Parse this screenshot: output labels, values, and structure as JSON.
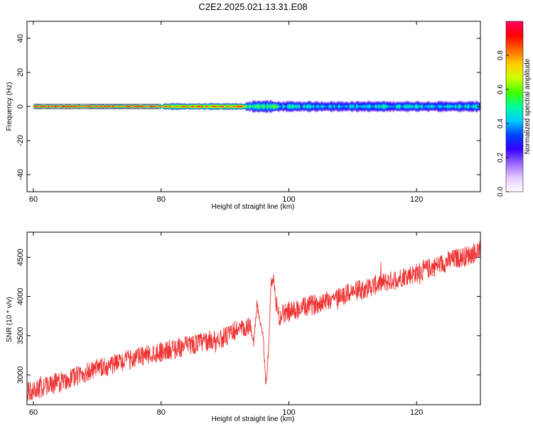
{
  "figure": {
    "title": "C2E2.2025.021.13.31.E08"
  },
  "chart_data": [
    {
      "type": "heatmap",
      "title": "C2E2.2025.021.13.31.E08",
      "xlabel": "Height of straight line (km)",
      "ylabel": "Frequency (Hz)",
      "xlim": [
        59,
        130
      ],
      "ylim": [
        -50,
        50
      ],
      "x_ticks": [
        60,
        80,
        100,
        120
      ],
      "y_ticks": [
        -40,
        -20,
        0,
        20,
        40
      ],
      "colorbar": {
        "label": "Normalized spectral amplitude",
        "range": [
          0,
          1
        ],
        "ticks": [
          "0.0",
          "0.2",
          "0.4",
          "0.6",
          "0.8"
        ],
        "colors": [
          "#ffffff",
          "#e6c8ff",
          "#9966ff",
          "#3300ff",
          "#0044ff",
          "#00ccff",
          "#00ff99",
          "#44ff00",
          "#ccff00",
          "#ffcc00",
          "#ff6600",
          "#ff0000",
          "#ff0066"
        ]
      },
      "ridge": {
        "center_frequency_hz": 0,
        "segments": [
          {
            "x_start": 60,
            "x_end": 80,
            "amplitude": 0.95,
            "half_width_hz": 1.2
          },
          {
            "x_start": 80,
            "x_end": 93,
            "amplitude": 0.85,
            "half_width_hz": 2.0
          },
          {
            "x_start": 93,
            "x_end": 98,
            "amplitude": 0.6,
            "half_width_hz": 3.0
          },
          {
            "x_start": 98,
            "x_end": 130,
            "amplitude": 0.45,
            "half_width_hz": 3.5
          }
        ]
      },
      "grid": false,
      "legend": "right"
    },
    {
      "type": "line",
      "xlabel": "Height of straight line (km)",
      "ylabel": "SNR (10 * v/v)",
      "xlim": [
        59,
        130
      ],
      "ylim": [
        2620,
        4820
      ],
      "x_ticks": [
        60,
        80,
        100,
        120
      ],
      "y_ticks": [
        3000,
        3500,
        4000,
        4500
      ],
      "color": "#ee3333",
      "series": [
        {
          "x": [
            59,
            60,
            62,
            64,
            66,
            68,
            70,
            72,
            74,
            76,
            78,
            80,
            82,
            84,
            86,
            88,
            90,
            91,
            92,
            93,
            94,
            94.5,
            95,
            95.5,
            96,
            96.4,
            96.8,
            97.2,
            97.6,
            98,
            98.5,
            99,
            100,
            102,
            104,
            106,
            108,
            110,
            112,
            114,
            116,
            118,
            120,
            122,
            124,
            126,
            128,
            130
          ],
          "y": [
            2780,
            2800,
            2860,
            2900,
            2960,
            3020,
            3070,
            3120,
            3170,
            3220,
            3260,
            3300,
            3330,
            3370,
            3410,
            3440,
            3480,
            3520,
            3600,
            3560,
            3620,
            3420,
            3900,
            3700,
            3500,
            2820,
            3300,
            4100,
            4250,
            3900,
            3750,
            3780,
            3800,
            3850,
            3900,
            3960,
            4000,
            4060,
            4100,
            4160,
            4200,
            4260,
            4300,
            4360,
            4420,
            4480,
            4520,
            4600
          ]
        }
      ],
      "grid": false
    }
  ]
}
